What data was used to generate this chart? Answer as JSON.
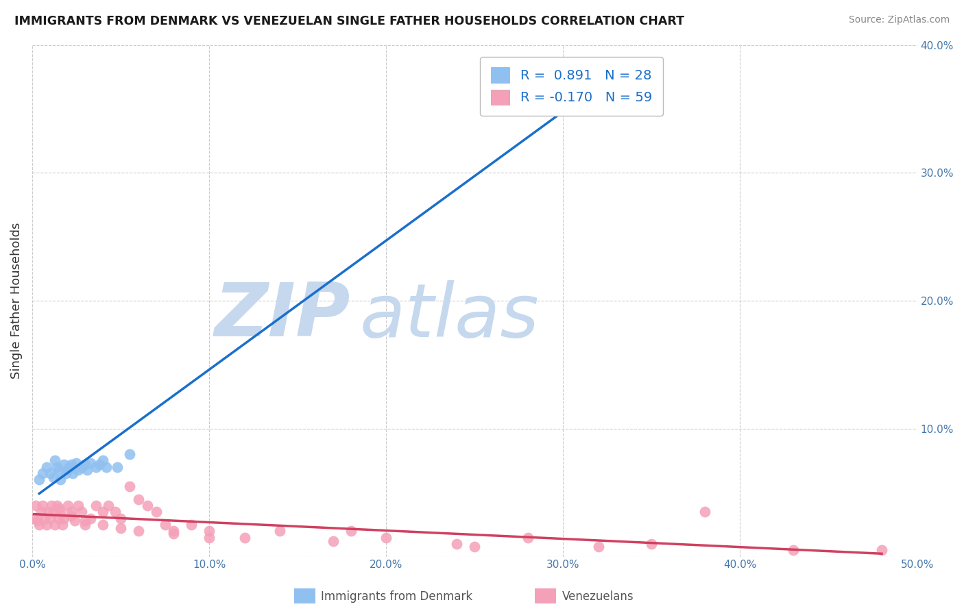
{
  "title": "IMMIGRANTS FROM DENMARK VS VENEZUELAN SINGLE FATHER HOUSEHOLDS CORRELATION CHART",
  "source": "Source: ZipAtlas.com",
  "ylabel": "Single Father Households",
  "xlim": [
    0.0,
    0.5
  ],
  "ylim": [
    0.0,
    0.4
  ],
  "xticks": [
    0.0,
    0.1,
    0.2,
    0.3,
    0.4,
    0.5
  ],
  "yticks": [
    0.0,
    0.1,
    0.2,
    0.3,
    0.4
  ],
  "xtick_labels": [
    "0.0%",
    "10.0%",
    "20.0%",
    "30.0%",
    "40.0%",
    "50.0%"
  ],
  "ytick_labels_right": [
    "",
    "10.0%",
    "20.0%",
    "30.0%",
    "40.0%"
  ],
  "legend_blue_label": "Immigrants from Denmark",
  "legend_pink_label": "Venezuelans",
  "r_blue": 0.891,
  "n_blue": 28,
  "r_pink": -0.17,
  "n_pink": 59,
  "blue_scatter_color": "#90C0F0",
  "pink_scatter_color": "#F4A0B8",
  "blue_line_color": "#1A6FCC",
  "pink_line_color": "#D04060",
  "watermark_color": "#C5D8EE",
  "background_color": "#FFFFFF",
  "grid_color": "#CCCCCC",
  "title_color": "#1A1A1A",
  "source_color": "#888888",
  "axis_tick_color": "#4477AA",
  "ylabel_color": "#333333",
  "legend_text_color": "#1A6FCC",
  "bottom_legend_color": "#555555",
  "blue_scatter_x": [
    0.004,
    0.006,
    0.008,
    0.01,
    0.012,
    0.013,
    0.014,
    0.015,
    0.016,
    0.018,
    0.019,
    0.02,
    0.021,
    0.022,
    0.023,
    0.025,
    0.026,
    0.028,
    0.03,
    0.031,
    0.033,
    0.036,
    0.038,
    0.04,
    0.042,
    0.048,
    0.055,
    0.32
  ],
  "blue_scatter_y": [
    0.06,
    0.065,
    0.07,
    0.065,
    0.062,
    0.075,
    0.07,
    0.068,
    0.06,
    0.072,
    0.065,
    0.068,
    0.07,
    0.072,
    0.065,
    0.073,
    0.068,
    0.07,
    0.072,
    0.068,
    0.073,
    0.07,
    0.072,
    0.075,
    0.07,
    0.07,
    0.08,
    0.38
  ],
  "pink_scatter_x": [
    0.001,
    0.002,
    0.003,
    0.004,
    0.005,
    0.006,
    0.007,
    0.008,
    0.009,
    0.01,
    0.011,
    0.012,
    0.013,
    0.014,
    0.015,
    0.016,
    0.017,
    0.018,
    0.02,
    0.022,
    0.024,
    0.026,
    0.028,
    0.03,
    0.033,
    0.036,
    0.04,
    0.043,
    0.047,
    0.05,
    0.055,
    0.06,
    0.065,
    0.07,
    0.075,
    0.08,
    0.09,
    0.1,
    0.12,
    0.14,
    0.17,
    0.2,
    0.24,
    0.28,
    0.32,
    0.38,
    0.43,
    0.48,
    0.35,
    0.18,
    0.25,
    0.015,
    0.022,
    0.03,
    0.04,
    0.05,
    0.06,
    0.08,
    0.1
  ],
  "pink_scatter_y": [
    0.03,
    0.04,
    0.028,
    0.025,
    0.035,
    0.04,
    0.03,
    0.025,
    0.035,
    0.03,
    0.04,
    0.035,
    0.025,
    0.04,
    0.03,
    0.035,
    0.025,
    0.03,
    0.04,
    0.035,
    0.028,
    0.04,
    0.035,
    0.025,
    0.03,
    0.04,
    0.035,
    0.04,
    0.035,
    0.03,
    0.055,
    0.045,
    0.04,
    0.035,
    0.025,
    0.02,
    0.025,
    0.02,
    0.015,
    0.02,
    0.012,
    0.015,
    0.01,
    0.015,
    0.008,
    0.035,
    0.005,
    0.005,
    0.01,
    0.02,
    0.008,
    0.038,
    0.032,
    0.028,
    0.025,
    0.022,
    0.02,
    0.018,
    0.015
  ]
}
